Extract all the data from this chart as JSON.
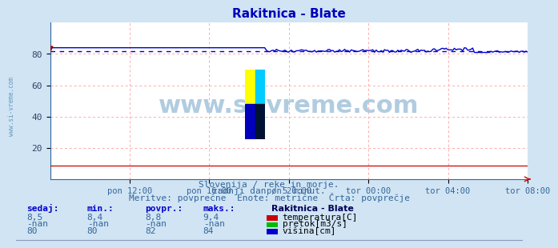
{
  "title": "Rakitnica - Blate",
  "subtitle_lines": [
    "Slovenija / reke in morje.",
    "zadnji dan / 5 minut.",
    "Meritve: povprečne  Enote: metrične  Črta: povprečje"
  ],
  "bg_color": "#d0e4f4",
  "plot_bg_color": "#ffffff",
  "ylim": [
    0,
    100
  ],
  "yticks": [
    20,
    40,
    60,
    80
  ],
  "xlabel_ticks": [
    "pon 12:00",
    "pon 16:00",
    "pon 20:00",
    "tor 00:00",
    "tor 04:00",
    "tor 08:00"
  ],
  "n_points": 288,
  "visina_avg": 82,
  "temp_color": "#cc0000",
  "pretok_color": "#00aa00",
  "visina_color": "#0000cc",
  "watermark_text": "www.si-vreme.com",
  "watermark_color": "#b0cce0",
  "table_headers": [
    "sedaj:",
    "min.:",
    "povpr.:",
    "maks.:"
  ],
  "table_rows": [
    [
      "8,5",
      "8,4",
      "8,8",
      "9,4"
    ],
    [
      "-nan",
      "-nan",
      "-nan",
      "-nan"
    ],
    [
      "80",
      "80",
      "82",
      "84"
    ]
  ],
  "legend_labels": [
    "temperatura[C]",
    "pretok[m3/s]",
    "višina[cm]"
  ],
  "legend_colors": [
    "#cc0000",
    "#00bb00",
    "#0000cc"
  ],
  "station_label": "Rakitnica - Blate",
  "sidebar_text": "www.si-vreme.com",
  "logo_colors": [
    "#ffff00",
    "#00ccff",
    "#0000bb",
    "#001133"
  ]
}
